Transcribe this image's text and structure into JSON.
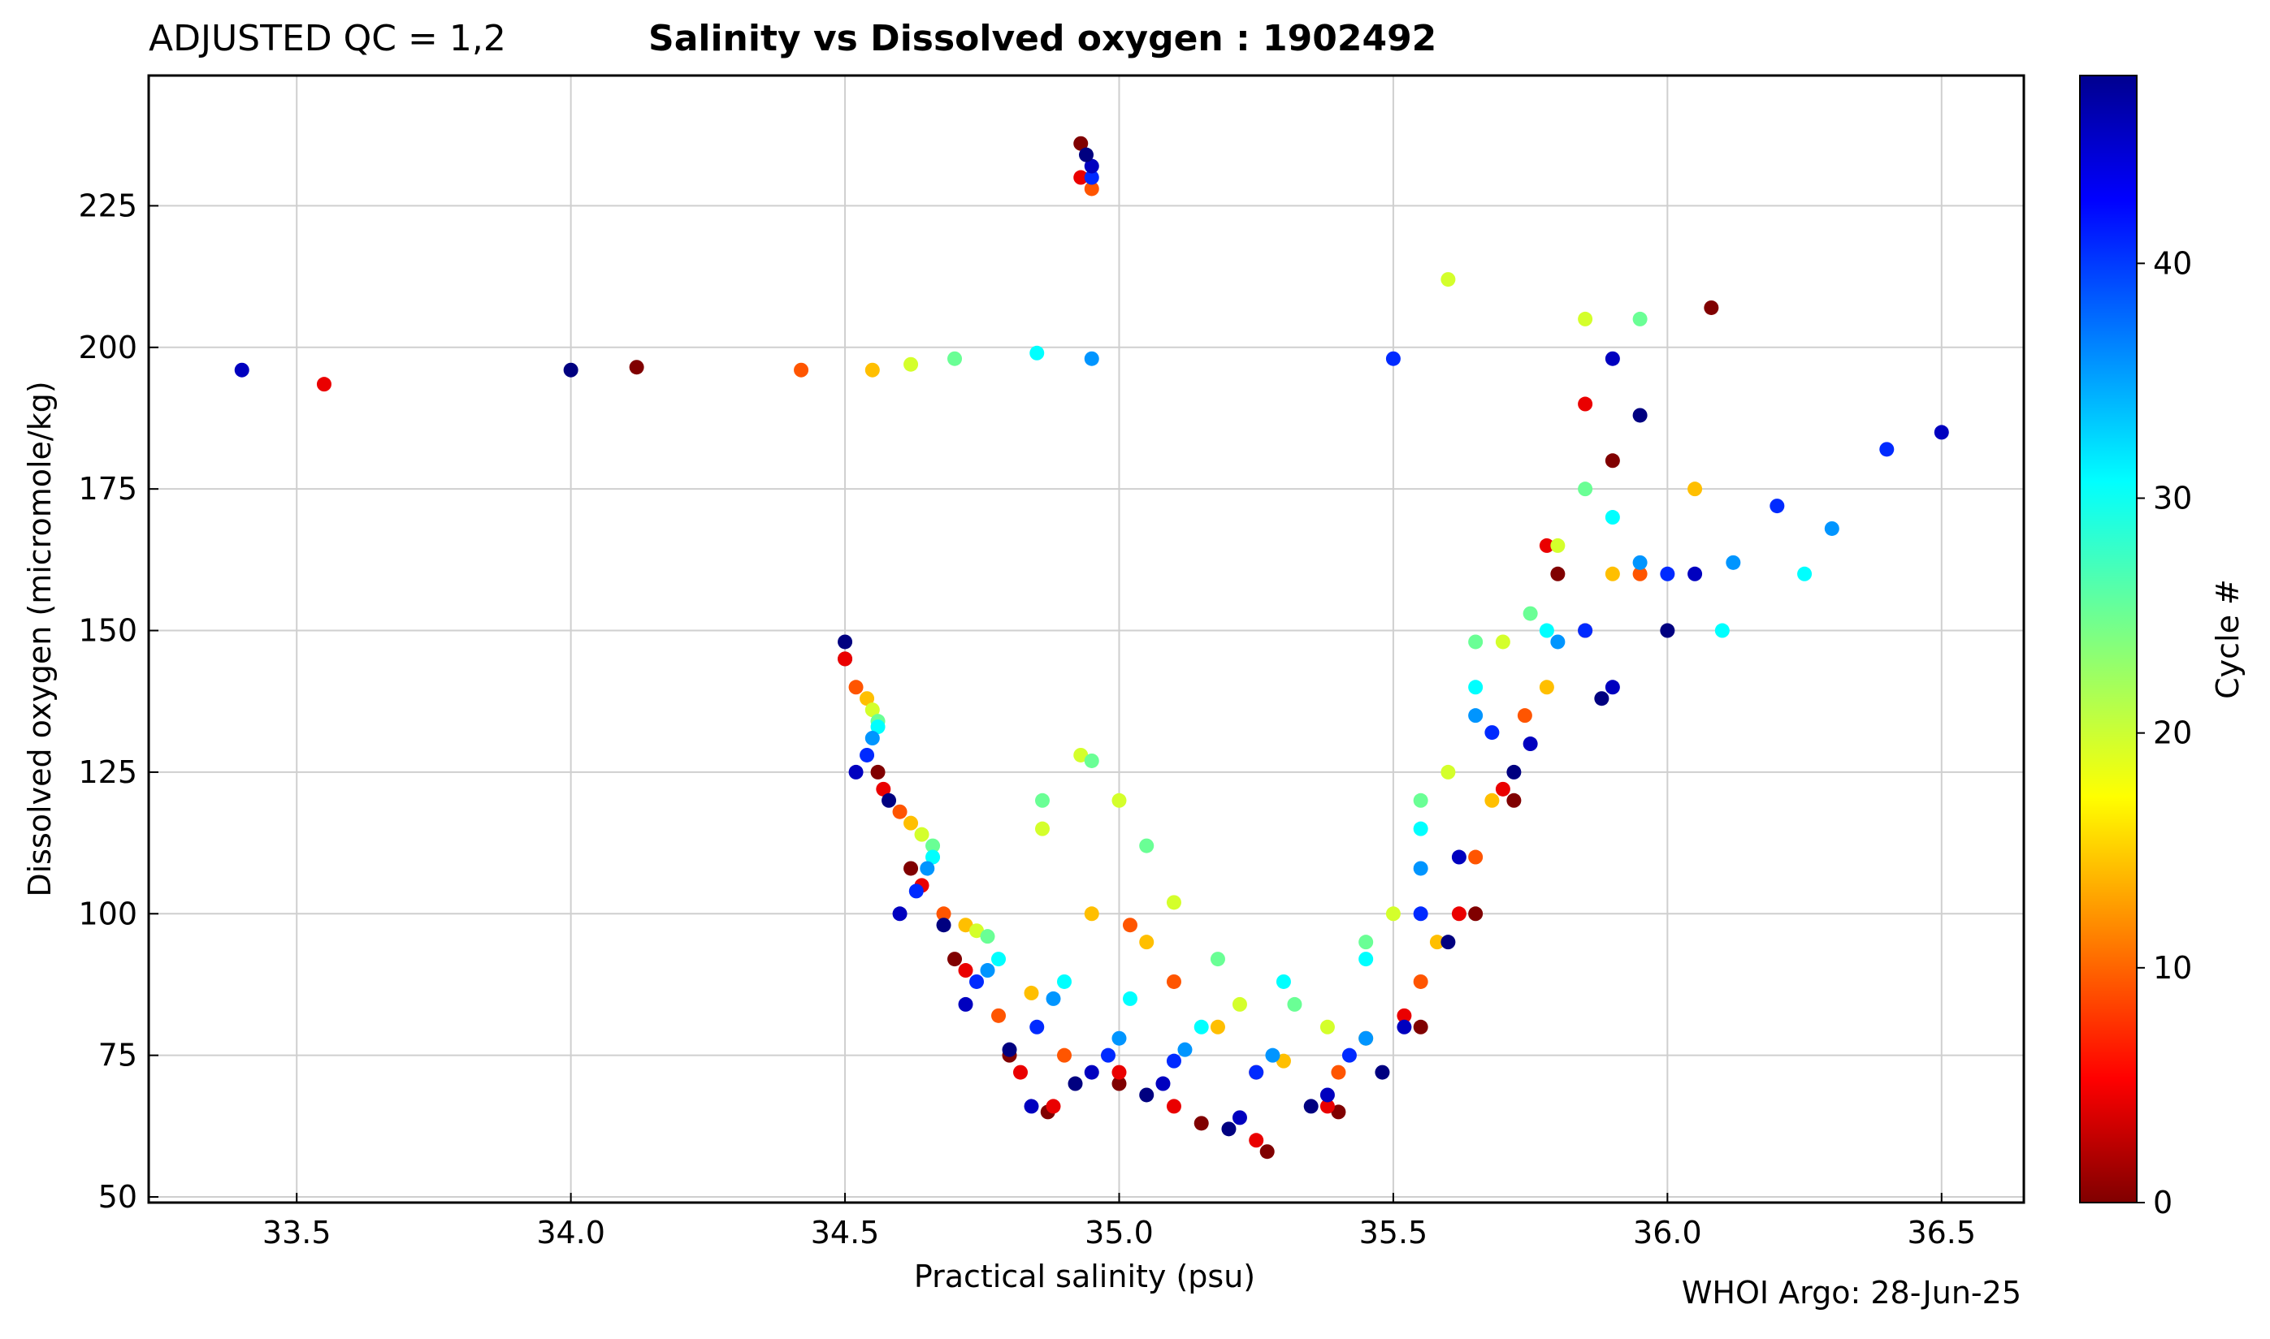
{
  "header": {
    "qc_label": "ADJUSTED QC = 1,2",
    "title": "Salinity vs Dissolved oxygen : 1902492"
  },
  "footer": {
    "credit": "WHOI Argo: 28-Jun-25"
  },
  "chart_data": {
    "type": "scatter",
    "title": "Salinity vs Dissolved oxygen : 1902492",
    "xlabel": "Practical salinity  (psu)",
    "ylabel": "Dissolved oxygen  (micromole/kg)",
    "xlim": [
      33.23,
      36.65
    ],
    "ylim": [
      49,
      248
    ],
    "xticks": [
      33.5,
      34.0,
      34.5,
      35.0,
      35.5,
      36.0,
      36.5
    ],
    "xtick_labels": [
      "33.5",
      "34.0",
      "34.5",
      "35.0",
      "35.5",
      "36.0",
      "36.5"
    ],
    "yticks": [
      50,
      75,
      100,
      125,
      150,
      175,
      200,
      225
    ],
    "ytick_labels": [
      "50",
      "75",
      "100",
      "125",
      "150",
      "175",
      "200",
      "225"
    ],
    "grid": true,
    "colorbar": {
      "label": "Cycle #",
      "colormap": "jet",
      "range": [
        0,
        48
      ],
      "ticks": [
        0,
        10,
        20,
        30,
        40
      ],
      "tick_labels": [
        "0",
        "10",
        "20",
        "30",
        "40"
      ]
    },
    "series_by_cycle": [
      {
        "cycle": 0,
        "points": [
          [
            34.12,
            196.5
          ],
          [
            34.5,
            145
          ],
          [
            34.56,
            125
          ],
          [
            34.62,
            108
          ],
          [
            34.7,
            92
          ],
          [
            34.8,
            75
          ],
          [
            34.87,
            65
          ],
          [
            35.0,
            70
          ],
          [
            35.15,
            63
          ],
          [
            35.27,
            58
          ],
          [
            35.4,
            65
          ],
          [
            35.55,
            80
          ],
          [
            35.65,
            100
          ],
          [
            35.72,
            120
          ],
          [
            35.8,
            160
          ],
          [
            35.9,
            180
          ],
          [
            36.08,
            207
          ],
          [
            34.93,
            236
          ]
        ]
      },
      {
        "cycle": 5,
        "points": [
          [
            33.55,
            193.5
          ],
          [
            34.5,
            145
          ],
          [
            34.57,
            122
          ],
          [
            34.64,
            105
          ],
          [
            34.72,
            90
          ],
          [
            34.82,
            72
          ],
          [
            34.88,
            66
          ],
          [
            35.0,
            72
          ],
          [
            35.1,
            66
          ],
          [
            35.25,
            60
          ],
          [
            35.38,
            66
          ],
          [
            35.52,
            82
          ],
          [
            35.62,
            100
          ],
          [
            35.7,
            122
          ],
          [
            35.78,
            165
          ],
          [
            35.85,
            190
          ],
          [
            34.93,
            230
          ]
        ]
      },
      {
        "cycle": 10,
        "points": [
          [
            34.42,
            196
          ],
          [
            34.52,
            140
          ],
          [
            34.6,
            118
          ],
          [
            34.68,
            100
          ],
          [
            34.78,
            82
          ],
          [
            34.9,
            75
          ],
          [
            35.02,
            98
          ],
          [
            35.1,
            88
          ],
          [
            35.25,
            72
          ],
          [
            35.4,
            72
          ],
          [
            35.55,
            88
          ],
          [
            35.65,
            110
          ],
          [
            35.74,
            135
          ],
          [
            35.85,
            150
          ],
          [
            35.95,
            160
          ],
          [
            34.95,
            228
          ]
        ]
      },
      {
        "cycle": 15,
        "points": [
          [
            34.55,
            196
          ],
          [
            34.54,
            138
          ],
          [
            34.62,
            116
          ],
          [
            34.72,
            98
          ],
          [
            34.84,
            86
          ],
          [
            34.95,
            100
          ],
          [
            35.05,
            95
          ],
          [
            35.18,
            80
          ],
          [
            35.3,
            74
          ],
          [
            35.45,
            78
          ],
          [
            35.58,
            95
          ],
          [
            35.68,
            120
          ],
          [
            35.78,
            140
          ],
          [
            35.9,
            160
          ],
          [
            36.05,
            175
          ]
        ]
      },
      {
        "cycle": 20,
        "points": [
          [
            34.62,
            197
          ],
          [
            34.55,
            136
          ],
          [
            34.64,
            114
          ],
          [
            34.74,
            97
          ],
          [
            34.86,
            115
          ],
          [
            34.93,
            128
          ],
          [
            35.0,
            120
          ],
          [
            35.1,
            102
          ],
          [
            35.22,
            84
          ],
          [
            35.38,
            80
          ],
          [
            35.5,
            100
          ],
          [
            35.6,
            125
          ],
          [
            35.7,
            148
          ],
          [
            35.8,
            165
          ],
          [
            35.6,
            212
          ],
          [
            35.85,
            205
          ]
        ]
      },
      {
        "cycle": 25,
        "points": [
          [
            34.7,
            198
          ],
          [
            34.56,
            134
          ],
          [
            34.66,
            112
          ],
          [
            34.76,
            96
          ],
          [
            34.86,
            120
          ],
          [
            34.95,
            127
          ],
          [
            35.05,
            112
          ],
          [
            35.18,
            92
          ],
          [
            35.32,
            84
          ],
          [
            35.45,
            95
          ],
          [
            35.55,
            120
          ],
          [
            35.65,
            148
          ],
          [
            35.75,
            153
          ],
          [
            35.85,
            175
          ],
          [
            35.95,
            205
          ]
        ]
      },
      {
        "cycle": 30,
        "points": [
          [
            34.85,
            199
          ],
          [
            34.56,
            133
          ],
          [
            34.66,
            110
          ],
          [
            34.78,
            92
          ],
          [
            34.9,
            88
          ],
          [
            35.02,
            85
          ],
          [
            35.15,
            80
          ],
          [
            35.3,
            88
          ],
          [
            35.45,
            92
          ],
          [
            35.55,
            115
          ],
          [
            35.65,
            140
          ],
          [
            35.78,
            150
          ],
          [
            35.9,
            170
          ],
          [
            36.1,
            150
          ],
          [
            36.25,
            160
          ]
        ]
      },
      {
        "cycle": 35,
        "points": [
          [
            34.95,
            198
          ],
          [
            34.55,
            131
          ],
          [
            34.65,
            108
          ],
          [
            34.76,
            90
          ],
          [
            34.88,
            85
          ],
          [
            35.0,
            78
          ],
          [
            35.12,
            76
          ],
          [
            35.28,
            75
          ],
          [
            35.45,
            78
          ],
          [
            35.55,
            108
          ],
          [
            35.65,
            135
          ],
          [
            35.8,
            148
          ],
          [
            35.95,
            162
          ],
          [
            36.12,
            162
          ],
          [
            36.3,
            168
          ]
        ]
      },
      {
        "cycle": 40,
        "points": [
          [
            35.5,
            198
          ],
          [
            34.54,
            128
          ],
          [
            34.63,
            104
          ],
          [
            34.74,
            88
          ],
          [
            34.85,
            80
          ],
          [
            34.98,
            75
          ],
          [
            35.1,
            74
          ],
          [
            35.25,
            72
          ],
          [
            35.42,
            75
          ],
          [
            35.55,
            100
          ],
          [
            35.68,
            132
          ],
          [
            35.85,
            150
          ],
          [
            36.0,
            160
          ],
          [
            36.2,
            172
          ],
          [
            36.4,
            182
          ],
          [
            34.95,
            230
          ]
        ]
      },
      {
        "cycle": 45,
        "points": [
          [
            33.4,
            196
          ],
          [
            34.52,
            125
          ],
          [
            34.6,
            100
          ],
          [
            34.72,
            84
          ],
          [
            34.84,
            66
          ],
          [
            34.95,
            72
          ],
          [
            35.08,
            70
          ],
          [
            35.22,
            64
          ],
          [
            35.38,
            68
          ],
          [
            35.52,
            80
          ],
          [
            35.62,
            110
          ],
          [
            35.75,
            130
          ],
          [
            35.9,
            140
          ],
          [
            36.05,
            160
          ],
          [
            36.5,
            185
          ],
          [
            35.9,
            198
          ],
          [
            34.95,
            232
          ]
        ]
      },
      {
        "cycle": 48,
        "points": [
          [
            34.0,
            196
          ],
          [
            34.5,
            148
          ],
          [
            34.58,
            120
          ],
          [
            34.68,
            98
          ],
          [
            34.8,
            76
          ],
          [
            34.92,
            70
          ],
          [
            35.05,
            68
          ],
          [
            35.2,
            62
          ],
          [
            35.35,
            66
          ],
          [
            35.48,
            72
          ],
          [
            35.6,
            95
          ],
          [
            35.72,
            125
          ],
          [
            35.88,
            138
          ],
          [
            36.0,
            150
          ],
          [
            35.95,
            188
          ],
          [
            34.94,
            234
          ]
        ]
      }
    ]
  }
}
